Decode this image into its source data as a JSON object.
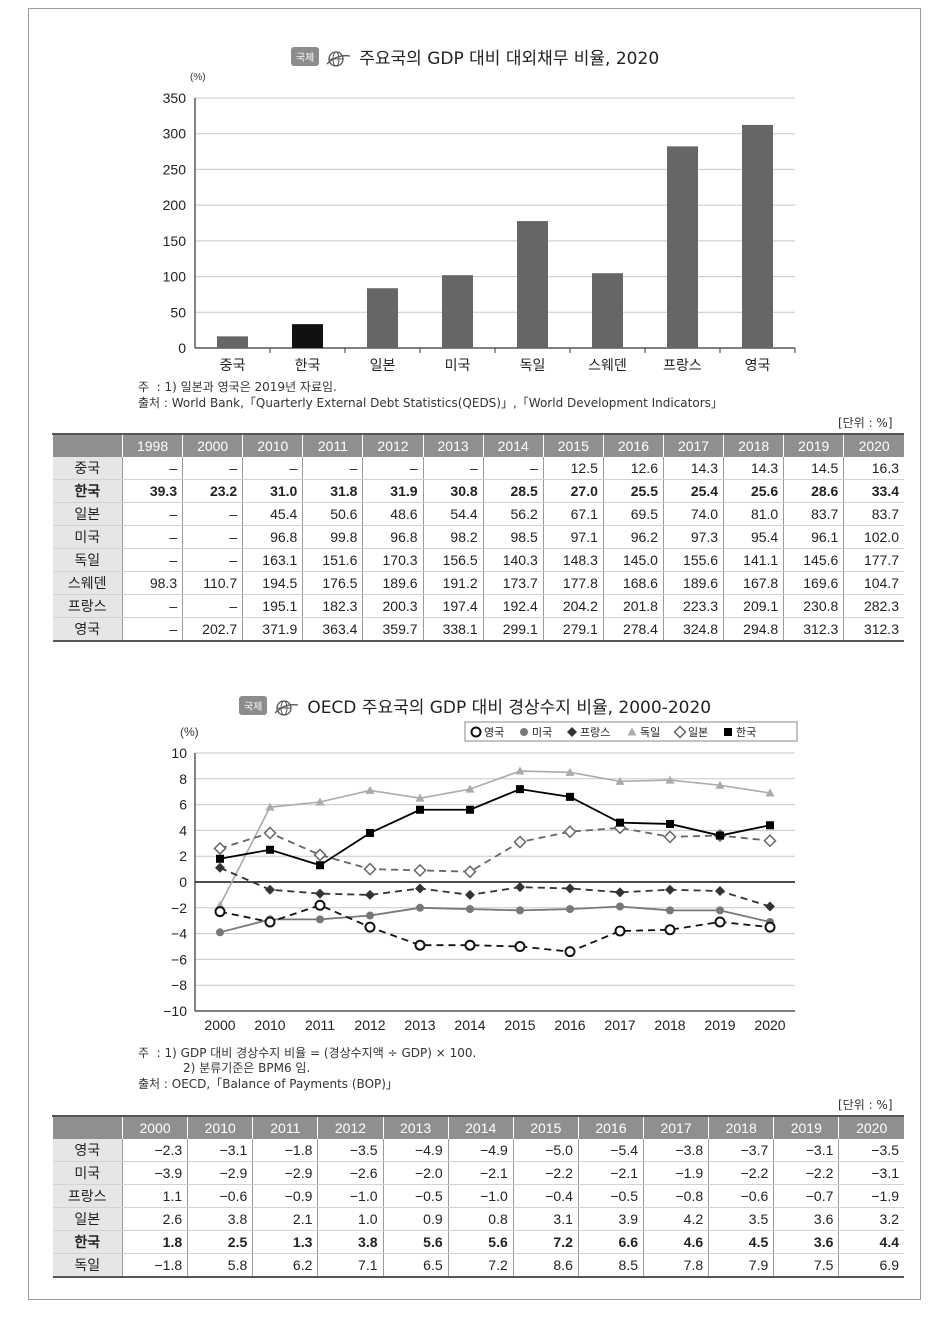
{
  "chart_data": [
    {
      "type": "bar",
      "title": "주요국의 GDP 대비 대외채무 비율, 2020",
      "badge": "국제",
      "yunit": "(%)",
      "ylim": [
        0,
        350
      ],
      "yticks": [
        0,
        50,
        100,
        150,
        200,
        250,
        300,
        350
      ],
      "grid": true,
      "categories": [
        "중국",
        "한국",
        "일본",
        "미국",
        "독일",
        "스웨덴",
        "프랑스",
        "영국"
      ],
      "values": [
        16.3,
        33.4,
        83.7,
        102.0,
        177.7,
        104.7,
        282.3,
        312.3
      ],
      "highlight": "한국",
      "colors": {
        "bar": "#666666",
        "highlight": "#111111"
      }
    },
    {
      "type": "line",
      "title": "OECD 주요국의 GDP 대비 경상수지 비율, 2000-2020",
      "badge": "국제",
      "yunit": "(%)",
      "ylim": [
        -10,
        10
      ],
      "yticks": [
        -10,
        -8,
        -6,
        -4,
        -2,
        0,
        2,
        4,
        6,
        8,
        10
      ],
      "grid": true,
      "legend_position": "top-right",
      "x": [
        "2000",
        "2010",
        "2011",
        "2012",
        "2013",
        "2014",
        "2015",
        "2016",
        "2017",
        "2018",
        "2019",
        "2020"
      ],
      "series": [
        {
          "name": "영국",
          "marker": "circle-open",
          "dash": true,
          "color": "#111111",
          "values": [
            -2.3,
            -3.1,
            -1.8,
            -3.5,
            -4.9,
            -4.9,
            -5.0,
            -5.4,
            -3.8,
            -3.7,
            -3.1,
            -3.5
          ]
        },
        {
          "name": "미국",
          "marker": "circle-filled",
          "dash": false,
          "color": "#777777",
          "values": [
            -3.9,
            -2.9,
            -2.9,
            -2.6,
            -2.0,
            -2.1,
            -2.2,
            -2.1,
            -1.9,
            -2.2,
            -2.2,
            -3.1
          ]
        },
        {
          "name": "프랑스",
          "marker": "diamond-filled",
          "dash": true,
          "color": "#333333",
          "values": [
            1.1,
            -0.6,
            -0.9,
            -1.0,
            -0.5,
            -1.0,
            -0.4,
            -0.5,
            -0.8,
            -0.6,
            -0.7,
            -1.9
          ]
        },
        {
          "name": "독일",
          "marker": "triangle-filled",
          "dash": false,
          "color": "#aaaaaa",
          "values": [
            -1.8,
            5.8,
            6.2,
            7.1,
            6.5,
            7.2,
            8.6,
            8.5,
            7.8,
            7.9,
            7.5,
            6.9
          ]
        },
        {
          "name": "일본",
          "marker": "diamond-open",
          "dash": true,
          "color": "#666666",
          "values": [
            2.6,
            3.8,
            2.1,
            1.0,
            0.9,
            0.8,
            3.1,
            3.9,
            4.2,
            3.5,
            3.6,
            3.2
          ]
        },
        {
          "name": "한국",
          "marker": "square-filled",
          "dash": false,
          "color": "#000000",
          "values": [
            1.8,
            2.5,
            1.3,
            3.8,
            5.6,
            5.6,
            7.2,
            6.6,
            4.6,
            4.5,
            3.6,
            4.4
          ]
        }
      ]
    }
  ],
  "notes1": {
    "note": "주  : 1) 일본과 영국은 2019년 자료임.",
    "source": "출처 : World Bank,「Quarterly External Debt Statistics(QEDS)」,「World Development Indicators」"
  },
  "unit_label": "[단위 : %]",
  "table1": {
    "headers": [
      "1998",
      "2000",
      "2010",
      "2011",
      "2012",
      "2013",
      "2014",
      "2015",
      "2016",
      "2017",
      "2018",
      "2019",
      "2020"
    ],
    "rows": [
      {
        "label": "중국",
        "bold": false,
        "cells": [
          "–",
          "–",
          "–",
          "–",
          "–",
          "–",
          "–",
          "12.5",
          "12.6",
          "14.3",
          "14.3",
          "14.5",
          "16.3"
        ]
      },
      {
        "label": "한국",
        "bold": true,
        "cells": [
          "39.3",
          "23.2",
          "31.0",
          "31.8",
          "31.9",
          "30.8",
          "28.5",
          "27.0",
          "25.5",
          "25.4",
          "25.6",
          "28.6",
          "33.4"
        ]
      },
      {
        "label": "일본",
        "bold": false,
        "cells": [
          "–",
          "–",
          "45.4",
          "50.6",
          "48.6",
          "54.4",
          "56.2",
          "67.1",
          "69.5",
          "74.0",
          "81.0",
          "83.7",
          "83.7"
        ]
      },
      {
        "label": "미국",
        "bold": false,
        "cells": [
          "–",
          "–",
          "96.8",
          "99.8",
          "96.8",
          "98.2",
          "98.5",
          "97.1",
          "96.2",
          "97.3",
          "95.4",
          "96.1",
          "102.0"
        ]
      },
      {
        "label": "독일",
        "bold": false,
        "cells": [
          "–",
          "–",
          "163.1",
          "151.6",
          "170.3",
          "156.5",
          "140.3",
          "148.3",
          "145.0",
          "155.6",
          "141.1",
          "145.6",
          "177.7"
        ]
      },
      {
        "label": "스웨덴",
        "bold": false,
        "cells": [
          "98.3",
          "110.7",
          "194.5",
          "176.5",
          "189.6",
          "191.2",
          "173.7",
          "177.8",
          "168.6",
          "189.6",
          "167.8",
          "169.6",
          "104.7"
        ]
      },
      {
        "label": "프랑스",
        "bold": false,
        "cells": [
          "–",
          "–",
          "195.1",
          "182.3",
          "200.3",
          "197.4",
          "192.4",
          "204.2",
          "201.8",
          "223.3",
          "209.1",
          "230.8",
          "282.3"
        ]
      },
      {
        "label": "영국",
        "bold": false,
        "cells": [
          "–",
          "202.7",
          "371.9",
          "363.4",
          "359.7",
          "338.1",
          "299.1",
          "279.1",
          "278.4",
          "324.8",
          "294.8",
          "312.3",
          "312.3"
        ]
      }
    ]
  },
  "notes2": {
    "note1": "주  : 1) GDP 대비 경상수지 비율 = (경상수지액 ÷ GDP) × 100.",
    "note2": "2) 분류기준은 BPM6 임.",
    "source": "출처 : OECD,「Balance of Payments (BOP)」"
  },
  "table2": {
    "headers": [
      "2000",
      "2010",
      "2011",
      "2012",
      "2013",
      "2014",
      "2015",
      "2016",
      "2017",
      "2018",
      "2019",
      "2020"
    ],
    "rows": [
      {
        "label": "영국",
        "bold": false,
        "cells": [
          "−2.3",
          "−3.1",
          "−1.8",
          "−3.5",
          "−4.9",
          "−4.9",
          "−5.0",
          "−5.4",
          "−3.8",
          "−3.7",
          "−3.1",
          "−3.5"
        ]
      },
      {
        "label": "미국",
        "bold": false,
        "cells": [
          "−3.9",
          "−2.9",
          "−2.9",
          "−2.6",
          "−2.0",
          "−2.1",
          "−2.2",
          "−2.1",
          "−1.9",
          "−2.2",
          "−2.2",
          "−3.1"
        ]
      },
      {
        "label": "프랑스",
        "bold": false,
        "cells": [
          "1.1",
          "−0.6",
          "−0.9",
          "−1.0",
          "−0.5",
          "−1.0",
          "−0.4",
          "−0.5",
          "−0.8",
          "−0.6",
          "−0.7",
          "−1.9"
        ]
      },
      {
        "label": "일본",
        "bold": false,
        "cells": [
          "2.6",
          "3.8",
          "2.1",
          "1.0",
          "0.9",
          "0.8",
          "3.1",
          "3.9",
          "4.2",
          "3.5",
          "3.6",
          "3.2"
        ]
      },
      {
        "label": "한국",
        "bold": true,
        "cells": [
          "1.8",
          "2.5",
          "1.3",
          "3.8",
          "5.6",
          "5.6",
          "7.2",
          "6.6",
          "4.6",
          "4.5",
          "3.6",
          "4.4"
        ]
      },
      {
        "label": "독일",
        "bold": false,
        "cells": [
          "−1.8",
          "5.8",
          "6.2",
          "7.1",
          "6.5",
          "7.2",
          "8.6",
          "8.5",
          "7.8",
          "7.9",
          "7.5",
          "6.9"
        ]
      }
    ]
  }
}
